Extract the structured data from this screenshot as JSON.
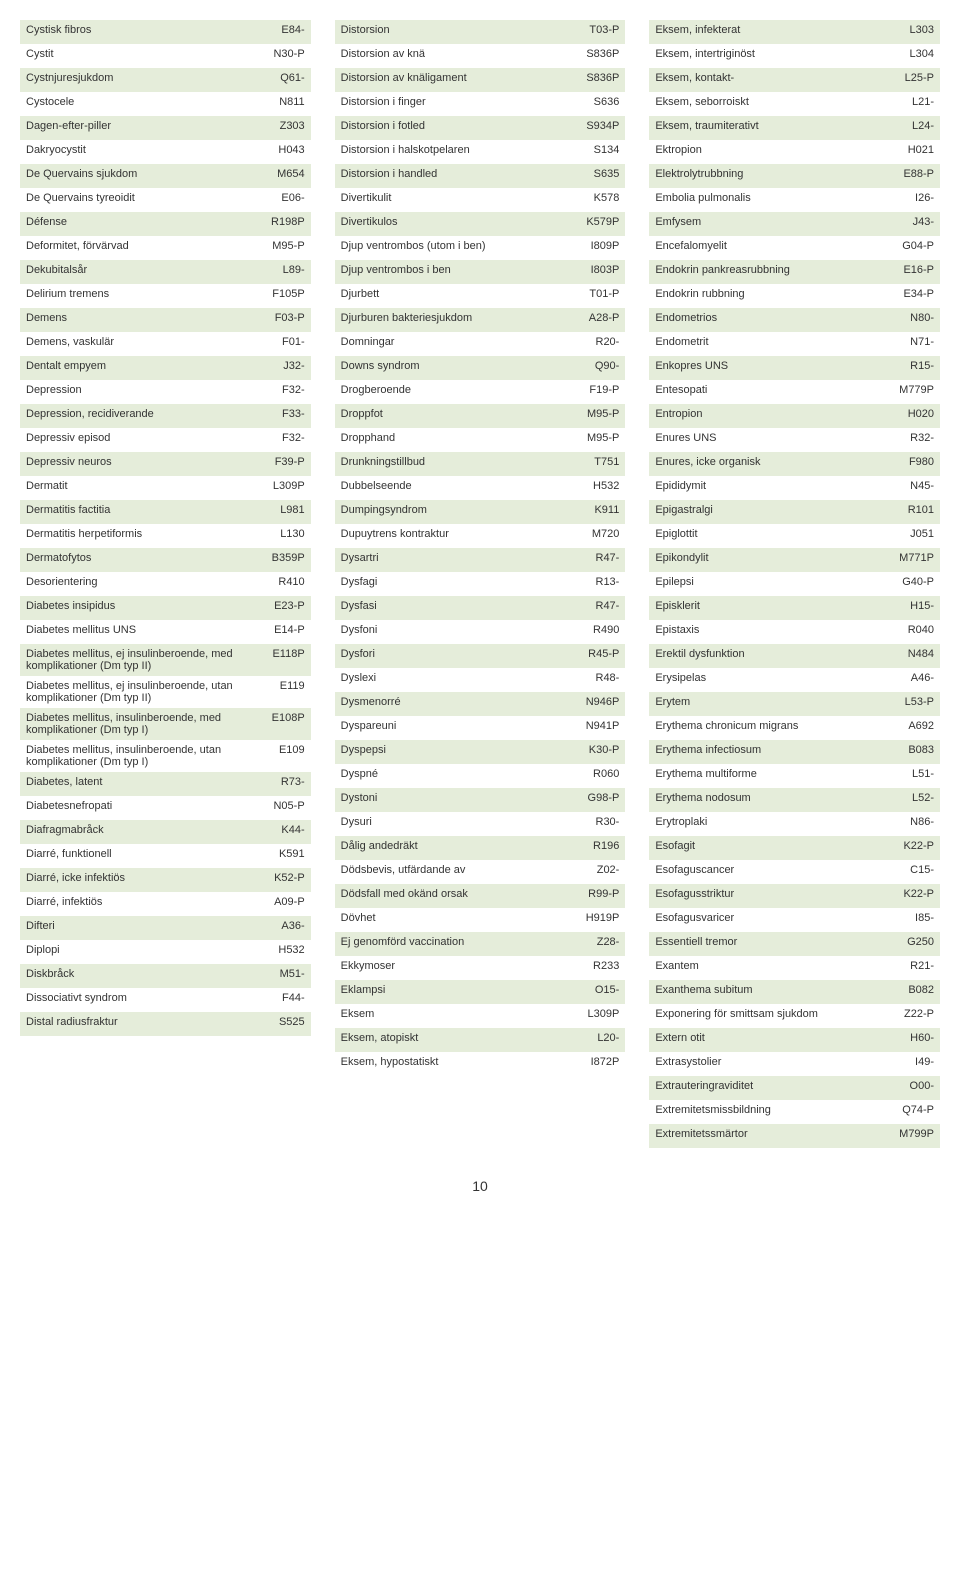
{
  "colors": {
    "row_alt_bg": "#e5edda",
    "row_bg": "#ffffff",
    "text": "#333333"
  },
  "page_number": "10",
  "columns": [
    [
      {
        "term": "Cystisk fibros",
        "code": "E84-"
      },
      {
        "term": "Cystit",
        "code": "N30-P"
      },
      {
        "term": "Cystnjuresjukdom",
        "code": "Q61-"
      },
      {
        "term": "Cystocele",
        "code": "N811"
      },
      {
        "term": "Dagen-efter-piller",
        "code": "Z303"
      },
      {
        "term": "Dakryocystit",
        "code": "H043"
      },
      {
        "term": "De Quervains sjukdom",
        "code": "M654"
      },
      {
        "term": "De Quervains tyreoidit",
        "code": "E06-"
      },
      {
        "term": "Défense",
        "code": "R198P"
      },
      {
        "term": "Deformitet, förvärvad",
        "code": "M95-P"
      },
      {
        "term": "Dekubitalsår",
        "code": "L89-"
      },
      {
        "term": "Delirium tremens",
        "code": "F105P"
      },
      {
        "term": "Demens",
        "code": "F03-P"
      },
      {
        "term": "Demens, vaskulär",
        "code": "F01-"
      },
      {
        "term": "Dentalt empyem",
        "code": "J32-"
      },
      {
        "term": "Depression",
        "code": "F32-"
      },
      {
        "term": "Depression, recidiverande",
        "code": "F33-"
      },
      {
        "term": "Depressiv episod",
        "code": "F32-"
      },
      {
        "term": "Depressiv neuros",
        "code": "F39-P"
      },
      {
        "term": "Dermatit",
        "code": "L309P"
      },
      {
        "term": "Dermatitis factitia",
        "code": "L981"
      },
      {
        "term": "Dermatitis herpetiformis",
        "code": "L130"
      },
      {
        "term": "Dermatofytos",
        "code": "B359P"
      },
      {
        "term": "Desorientering",
        "code": "R410"
      },
      {
        "term": "Diabetes insipidus",
        "code": "E23-P"
      },
      {
        "term": "Diabetes mellitus UNS",
        "code": "E14-P"
      },
      {
        "term": "Diabetes mellitus, ej insulinberoende, med komplikationer (Dm typ II)",
        "code": "E118P"
      },
      {
        "term": "Diabetes mellitus, ej insulinberoende, utan komplikationer (Dm typ II)",
        "code": "E119"
      },
      {
        "term": "Diabetes mellitus, insulinberoende, med komplikationer (Dm typ I)",
        "code": "E108P"
      },
      {
        "term": "Diabetes mellitus, insulinberoende, utan komplikationer (Dm typ I)",
        "code": "E109"
      },
      {
        "term": "Diabetes, latent",
        "code": "R73-"
      },
      {
        "term": "Diabetesnefropati",
        "code": "N05-P"
      },
      {
        "term": "Diafragmabråck",
        "code": "K44-"
      },
      {
        "term": "Diarré, funktionell",
        "code": "K591"
      },
      {
        "term": "Diarré, icke infektiös",
        "code": "K52-P"
      },
      {
        "term": "Diarré, infektiös",
        "code": "A09-P"
      },
      {
        "term": "Difteri",
        "code": "A36-"
      },
      {
        "term": "Diplopi",
        "code": "H532"
      },
      {
        "term": "Diskbråck",
        "code": "M51-"
      },
      {
        "term": "Dissociativt syndrom",
        "code": "F44-"
      },
      {
        "term": "Distal radiusfraktur",
        "code": "S525"
      }
    ],
    [
      {
        "term": "Distorsion",
        "code": "T03-P"
      },
      {
        "term": "Distorsion av knä",
        "code": "S836P"
      },
      {
        "term": "Distorsion av knäligament",
        "code": "S836P"
      },
      {
        "term": "Distorsion i finger",
        "code": "S636"
      },
      {
        "term": "Distorsion i fotled",
        "code": "S934P"
      },
      {
        "term": "Distorsion i halskotpelaren",
        "code": "S134"
      },
      {
        "term": "Distorsion i handled",
        "code": "S635"
      },
      {
        "term": "Divertikulit",
        "code": "K578"
      },
      {
        "term": "Divertikulos",
        "code": "K579P"
      },
      {
        "term": "Djup ventrombos (utom i ben)",
        "code": "I809P"
      },
      {
        "term": "Djup ventrombos i ben",
        "code": "I803P"
      },
      {
        "term": "Djurbett",
        "code": "T01-P"
      },
      {
        "term": "Djurburen bakteriesjukdom",
        "code": "A28-P"
      },
      {
        "term": "Domningar",
        "code": "R20-"
      },
      {
        "term": "Downs syndrom",
        "code": "Q90-"
      },
      {
        "term": "Drogberoende",
        "code": "F19-P"
      },
      {
        "term": "Droppfot",
        "code": "M95-P"
      },
      {
        "term": "Dropphand",
        "code": "M95-P"
      },
      {
        "term": "Drunkningstillbud",
        "code": "T751"
      },
      {
        "term": "Dubbelseende",
        "code": "H532"
      },
      {
        "term": "Dumpingsyndrom",
        "code": "K911"
      },
      {
        "term": "Dupuytrens kontraktur",
        "code": "M720"
      },
      {
        "term": "Dysartri",
        "code": "R47-"
      },
      {
        "term": "Dysfagi",
        "code": "R13-"
      },
      {
        "term": "Dysfasi",
        "code": "R47-"
      },
      {
        "term": "Dysfoni",
        "code": "R490"
      },
      {
        "term": "Dysfori",
        "code": "R45-P"
      },
      {
        "term": "Dyslexi",
        "code": "R48-"
      },
      {
        "term": "Dysmenorré",
        "code": "N946P"
      },
      {
        "term": "Dyspareuni",
        "code": "N941P"
      },
      {
        "term": "Dyspepsi",
        "code": "K30-P"
      },
      {
        "term": "Dyspné",
        "code": "R060"
      },
      {
        "term": "Dystoni",
        "code": "G98-P"
      },
      {
        "term": "Dysuri",
        "code": "R30-"
      },
      {
        "term": "Dålig andedräkt",
        "code": "R196"
      },
      {
        "term": "Dödsbevis, utfärdande av",
        "code": "Z02-"
      },
      {
        "term": "Dödsfall med okänd orsak",
        "code": "R99-P"
      },
      {
        "term": "Dövhet",
        "code": "H919P"
      },
      {
        "term": "Ej genomförd vaccination",
        "code": "Z28-"
      },
      {
        "term": "Ekkymoser",
        "code": "R233"
      },
      {
        "term": "Eklampsi",
        "code": "O15-"
      },
      {
        "term": "Eksem",
        "code": "L309P"
      },
      {
        "term": "Eksem, atopiskt",
        "code": "L20-"
      },
      {
        "term": "Eksem, hypostatiskt",
        "code": "I872P"
      }
    ],
    [
      {
        "term": "Eksem, infekterat",
        "code": "L303"
      },
      {
        "term": "Eksem, intertriginöst",
        "code": "L304"
      },
      {
        "term": "Eksem, kontakt-",
        "code": "L25-P"
      },
      {
        "term": "Eksem, seborroiskt",
        "code": "L21-"
      },
      {
        "term": "Eksem, traumiterativt",
        "code": "L24-"
      },
      {
        "term": "Ektropion",
        "code": "H021"
      },
      {
        "term": "Elektrolytrubbning",
        "code": "E88-P"
      },
      {
        "term": "Embolia pulmonalis",
        "code": "I26-"
      },
      {
        "term": "Emfysem",
        "code": "J43-"
      },
      {
        "term": "Encefalomyelit",
        "code": "G04-P"
      },
      {
        "term": "Endokrin pankreasrubbning",
        "code": "E16-P"
      },
      {
        "term": "Endokrin rubbning",
        "code": "E34-P"
      },
      {
        "term": "Endometrios",
        "code": "N80-"
      },
      {
        "term": "Endometrit",
        "code": "N71-"
      },
      {
        "term": "Enkopres UNS",
        "code": "R15-"
      },
      {
        "term": "Entesopati",
        "code": "M779P"
      },
      {
        "term": "Entropion",
        "code": "H020"
      },
      {
        "term": "Enures UNS",
        "code": "R32-"
      },
      {
        "term": "Enures, icke organisk",
        "code": "F980"
      },
      {
        "term": "Epididymit",
        "code": "N45-"
      },
      {
        "term": "Epigastralgi",
        "code": "R101"
      },
      {
        "term": "Epiglottit",
        "code": "J051"
      },
      {
        "term": "Epikondylit",
        "code": "M771P"
      },
      {
        "term": "Epilepsi",
        "code": "G40-P"
      },
      {
        "term": "Episklerit",
        "code": "H15-"
      },
      {
        "term": "Epistaxis",
        "code": "R040"
      },
      {
        "term": "Erektil dysfunktion",
        "code": "N484"
      },
      {
        "term": "Erysipelas",
        "code": "A46-"
      },
      {
        "term": "Erytem",
        "code": "L53-P"
      },
      {
        "term": "Erythema chronicum migrans",
        "code": "A692"
      },
      {
        "term": "Erythema infectiosum",
        "code": "B083"
      },
      {
        "term": "Erythema multiforme",
        "code": "L51-"
      },
      {
        "term": "Erythema nodosum",
        "code": "L52-"
      },
      {
        "term": "Erytroplaki",
        "code": "N86-"
      },
      {
        "term": "Esofagit",
        "code": "K22-P"
      },
      {
        "term": "Esofaguscancer",
        "code": "C15-"
      },
      {
        "term": "Esofagusstriktur",
        "code": "K22-P"
      },
      {
        "term": "Esofagusvaricer",
        "code": "I85-"
      },
      {
        "term": "Essentiell tremor",
        "code": "G250"
      },
      {
        "term": "Exantem",
        "code": "R21-"
      },
      {
        "term": "Exanthema subitum",
        "code": "B082"
      },
      {
        "term": "Exponering för smittsam sjukdom",
        "code": "Z22-P"
      },
      {
        "term": "Extern otit",
        "code": "H60-"
      },
      {
        "term": "Extrasystolier",
        "code": "I49-"
      },
      {
        "term": "Extrauteringraviditet",
        "code": "O00-"
      },
      {
        "term": "Extremitetsmissbildning",
        "code": "Q74-P"
      },
      {
        "term": "Extremitetssmärtor",
        "code": "M799P"
      }
    ]
  ]
}
